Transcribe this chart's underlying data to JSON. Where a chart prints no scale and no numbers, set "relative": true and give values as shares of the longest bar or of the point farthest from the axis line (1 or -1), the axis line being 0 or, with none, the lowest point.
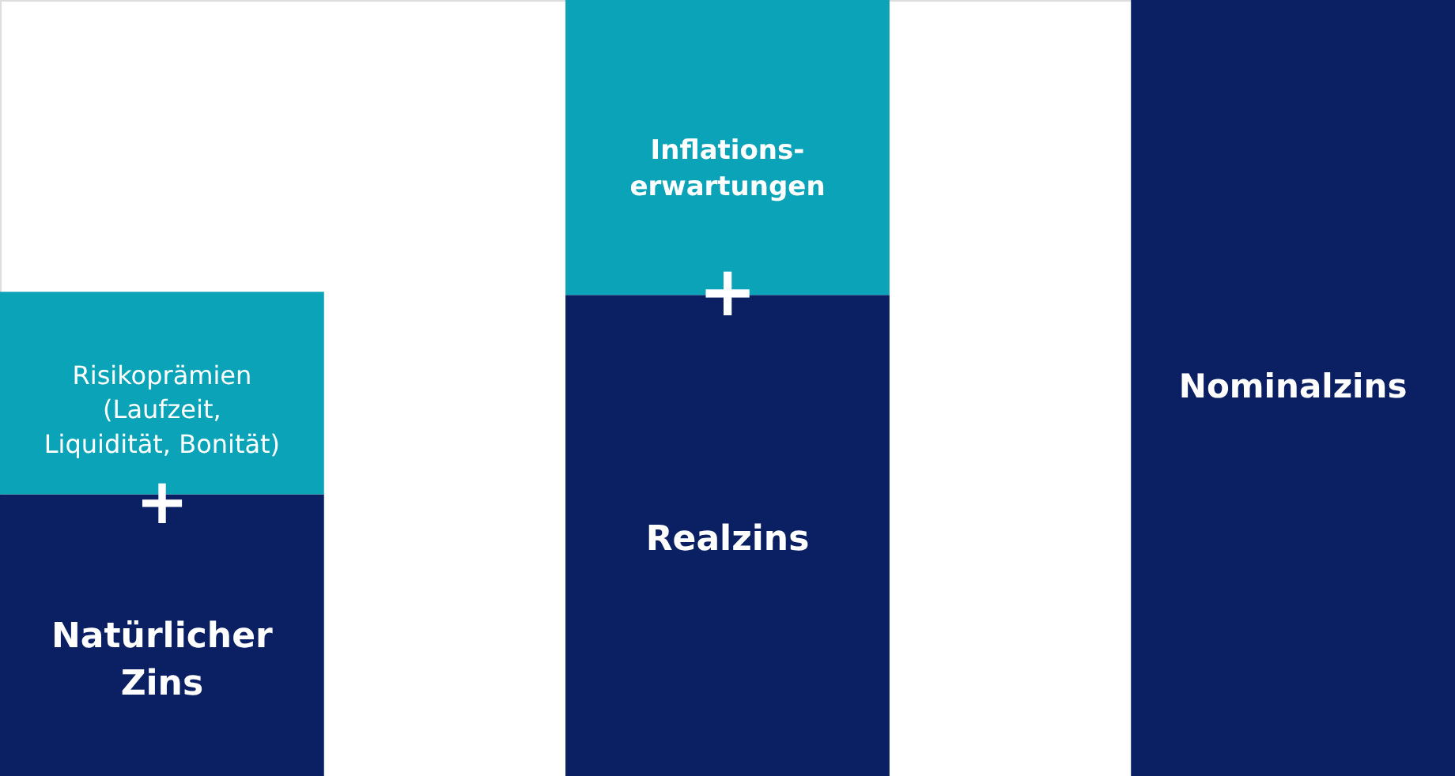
{
  "chart_data": {
    "type": "bar",
    "stacked": true,
    "relative": true,
    "categories": [
      null,
      null,
      null
    ],
    "series": [
      {
        "color": "#0b1f63",
        "values": [
          0.363,
          0.62,
          1.0
        ]
      },
      {
        "color": "#0ba3b7",
        "values": [
          0.261,
          0.38,
          0
        ]
      }
    ],
    "annotations": [
      "Risikoprämien\n(Laufzeit,\nLiquidität, Bonität)",
      "+",
      "Natürlicher\nZins",
      "Inflations-\nerwartungen",
      "+",
      "Realzins",
      "Nominalzins"
    ]
  }
}
